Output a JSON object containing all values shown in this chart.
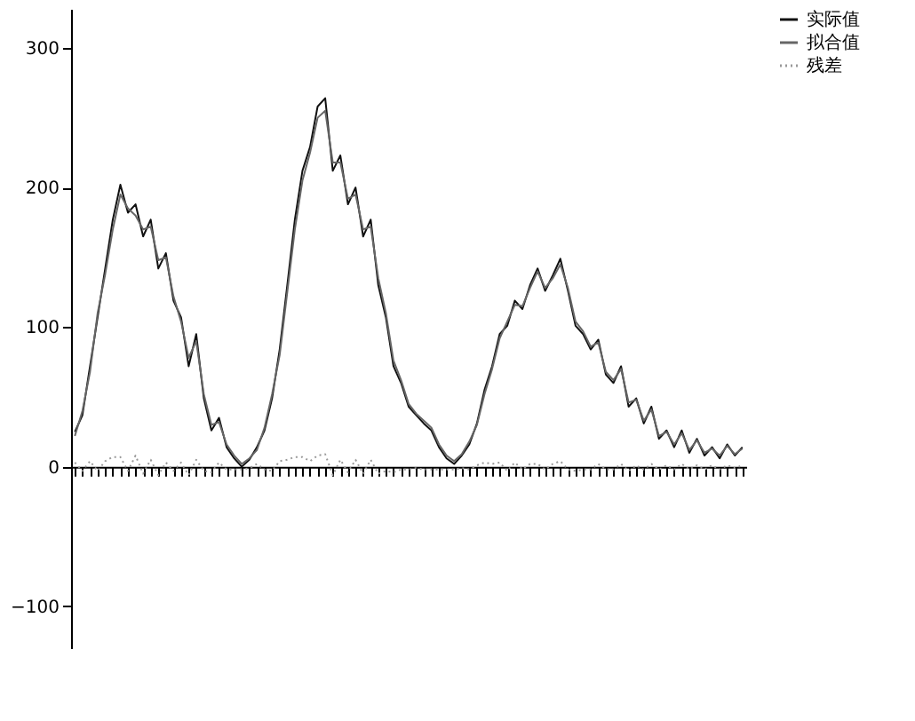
{
  "chart_data": {
    "type": "line",
    "categories": [
      null,
      null,
      null,
      null,
      null,
      null,
      null,
      null,
      null,
      null,
      null,
      null,
      null,
      null,
      null,
      null,
      null,
      null,
      null,
      null,
      null,
      null,
      null,
      null,
      null,
      null,
      null,
      null,
      null,
      null,
      null,
      null,
      null,
      null,
      null,
      null,
      null,
      null,
      null,
      null,
      null,
      null,
      null,
      null,
      null,
      null,
      null,
      null,
      null,
      null,
      null,
      null,
      null,
      null,
      null,
      null,
      null,
      null,
      null,
      null,
      null,
      null,
      null,
      null,
      null,
      null,
      null,
      null,
      null,
      null,
      null,
      null,
      null,
      null,
      null,
      null,
      null,
      null,
      null,
      null,
      null,
      null,
      null,
      null,
      null,
      null,
      null,
      null,
      null
    ],
    "series": [
      {
        "name": "实际值",
        "color": "#111111",
        "line_style": "solid",
        "values": [
          25,
          37,
          72,
          107,
          142,
          177,
          202,
          182,
          188,
          165,
          177,
          142,
          153,
          119,
          107,
          72,
          95,
          49,
          26,
          35,
          14,
          6,
          0,
          5,
          14,
          26,
          49,
          84,
          130,
          177,
          212,
          229,
          258,
          264,
          212,
          223,
          188,
          200,
          165,
          177,
          130,
          107,
          72,
          60,
          43,
          37,
          31,
          26,
          14,
          6,
          2,
          8,
          16,
          31,
          55,
          72,
          95,
          101,
          119,
          113,
          130,
          142,
          126,
          137,
          149,
          126,
          101,
          95,
          84,
          91,
          66,
          60,
          72,
          43,
          49,
          31,
          43,
          20,
          26,
          14,
          26,
          10,
          20,
          8,
          14,
          6,
          16,
          8,
          14
        ]
      },
      {
        "name": "拟合值",
        "color": "#666666",
        "line_style": "solid",
        "values": [
          22,
          40,
          68,
          110,
          138,
          170,
          195,
          185,
          180,
          170,
          172,
          148,
          150,
          122,
          104,
          78,
          90,
          52,
          30,
          32,
          16,
          8,
          2,
          6,
          12,
          28,
          52,
          80,
          125,
          170,
          205,
          225,
          250,
          255,
          218,
          218,
          192,
          195,
          170,
          172,
          135,
          110,
          76,
          62,
          45,
          38,
          33,
          28,
          16,
          8,
          4,
          9,
          18,
          30,
          52,
          70,
          92,
          104,
          116,
          115,
          128,
          140,
          128,
          135,
          145,
          128,
          104,
          97,
          86,
          89,
          68,
          62,
          70,
          46,
          48,
          33,
          41,
          22,
          25,
          16,
          24,
          12,
          19,
          10,
          13,
          8,
          15,
          9,
          13
        ]
      },
      {
        "name": "残差",
        "color": "#999999",
        "line_style": "dotted",
        "values": [
          3,
          -3,
          4,
          -3,
          4,
          7,
          7,
          -3,
          8,
          -5,
          5,
          -6,
          3,
          -3,
          3,
          -6,
          5,
          -3,
          -4,
          3,
          -2,
          -2,
          -2,
          -1,
          2,
          -2,
          -3,
          4,
          5,
          7,
          7,
          4,
          8,
          9,
          -6,
          5,
          -4,
          5,
          -5,
          5,
          -5,
          -3,
          -4,
          -2,
          -2,
          -1,
          -2,
          -2,
          -2,
          -2,
          -2,
          -1,
          -2,
          1,
          3,
          2,
          3,
          -3,
          3,
          -2,
          2,
          2,
          -2,
          2,
          4,
          -2,
          -3,
          -2,
          -2,
          2,
          -2,
          -2,
          2,
          -3,
          1,
          -2,
          2,
          -2,
          1,
          -2,
          2,
          -2,
          1,
          -2,
          1,
          -2,
          1,
          -1,
          1
        ]
      }
    ],
    "ylim": [
      -130,
      328
    ],
    "yticks": [
      -100,
      0,
      100,
      200,
      300
    ],
    "legend": "right",
    "marker": "none",
    "tick_labels": "y"
  }
}
